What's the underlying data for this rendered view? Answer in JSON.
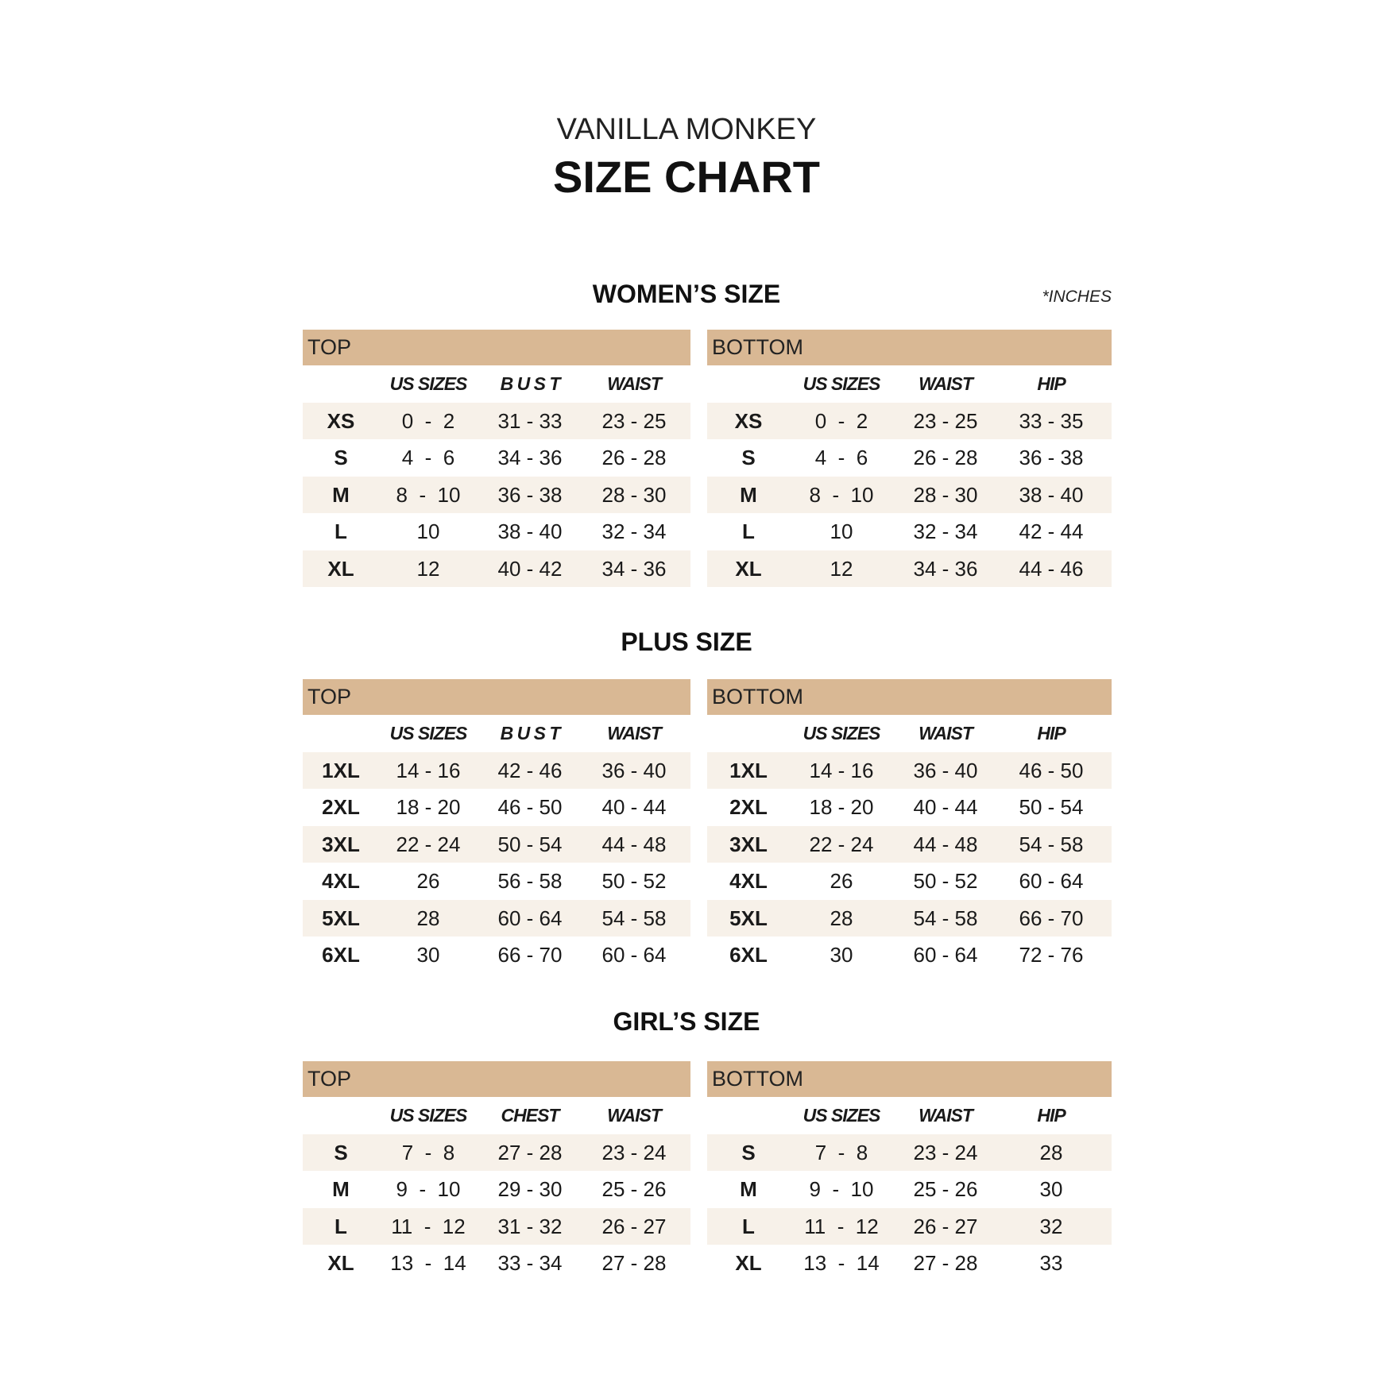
{
  "brand": "VANILLA MONKEY",
  "title": "SIZE CHART",
  "units_note": "*INCHES",
  "colors": {
    "header_bar": "#d9b894",
    "row_shade": "#f7f1e9"
  },
  "sections": [
    {
      "title": "WOMEN’S SIZE",
      "top": {
        "label": "TOP",
        "columns": [
          "US SIZES",
          "B U S T",
          "WAIST"
        ],
        "rows": [
          [
            "XS",
            "0  -  2",
            "31 - 33",
            "23 - 25"
          ],
          [
            "S",
            "4  -  6",
            "34 - 36",
            "26 - 28"
          ],
          [
            "M",
            "8  -  10",
            "36 - 38",
            "28 - 30"
          ],
          [
            "L",
            "10",
            "38 - 40",
            "32 - 34"
          ],
          [
            "XL",
            "12",
            "40 - 42",
            "34 - 36"
          ]
        ]
      },
      "bottom": {
        "label": "BOTTOM",
        "columns": [
          "US SIZES",
          "WAIST",
          "HIP"
        ],
        "rows": [
          [
            "XS",
            "0  -  2",
            "23 - 25",
            "33 - 35"
          ],
          [
            "S",
            "4  -  6",
            "26 - 28",
            "36 - 38"
          ],
          [
            "M",
            "8  -  10",
            "28 - 30",
            "38 - 40"
          ],
          [
            "L",
            "10",
            "32 - 34",
            "42 - 44"
          ],
          [
            "XL",
            "12",
            "34 - 36",
            "44 - 46"
          ]
        ]
      }
    },
    {
      "title": "PLUS SIZE",
      "top": {
        "label": "TOP",
        "columns": [
          "US SIZES",
          "B U S T",
          "WAIST"
        ],
        "rows": [
          [
            "1XL",
            "14 - 16",
            "42 - 46",
            "36 - 40"
          ],
          [
            "2XL",
            "18 - 20",
            "46 - 50",
            "40 - 44"
          ],
          [
            "3XL",
            "22 - 24",
            "50 - 54",
            "44 - 48"
          ],
          [
            "4XL",
            "26",
            "56 - 58",
            "50 - 52"
          ],
          [
            "5XL",
            "28",
            "60 - 64",
            "54 - 58"
          ],
          [
            "6XL",
            "30",
            "66 - 70",
            "60 - 64"
          ]
        ]
      },
      "bottom": {
        "label": "BOTTOM",
        "columns": [
          "US SIZES",
          "WAIST",
          "HIP"
        ],
        "rows": [
          [
            "1XL",
            "14 - 16",
            "36 - 40",
            "46 - 50"
          ],
          [
            "2XL",
            "18 - 20",
            "40 - 44",
            "50 - 54"
          ],
          [
            "3XL",
            "22 - 24",
            "44 - 48",
            "54 - 58"
          ],
          [
            "4XL",
            "26",
            "50 - 52",
            "60 - 64"
          ],
          [
            "5XL",
            "28",
            "54 - 58",
            "66 - 70"
          ],
          [
            "6XL",
            "30",
            "60 - 64",
            "72 - 76"
          ]
        ]
      }
    },
    {
      "title": "GIRL’S SIZE",
      "top": {
        "label": "TOP",
        "columns": [
          "US SIZES",
          "CHEST",
          "WAIST"
        ],
        "rows": [
          [
            "S",
            "7  -  8",
            "27 - 28",
            "23 - 24"
          ],
          [
            "M",
            "9  -  10",
            "29 - 30",
            "25 - 26"
          ],
          [
            "L",
            "11  -  12",
            "31 - 32",
            "26 - 27"
          ],
          [
            "XL",
            "13  -  14",
            "33 - 34",
            "27 - 28"
          ]
        ]
      },
      "bottom": {
        "label": "BOTTOM",
        "columns": [
          "US SIZES",
          "WAIST",
          "HIP"
        ],
        "rows": [
          [
            "S",
            "7  -  8",
            "23 - 24",
            "28"
          ],
          [
            "M",
            "9  -  10",
            "25 - 26",
            "30"
          ],
          [
            "L",
            "11  -  12",
            "26 - 27",
            "32"
          ],
          [
            "XL",
            "13  -  14",
            "27 - 28",
            "33"
          ]
        ]
      }
    }
  ]
}
